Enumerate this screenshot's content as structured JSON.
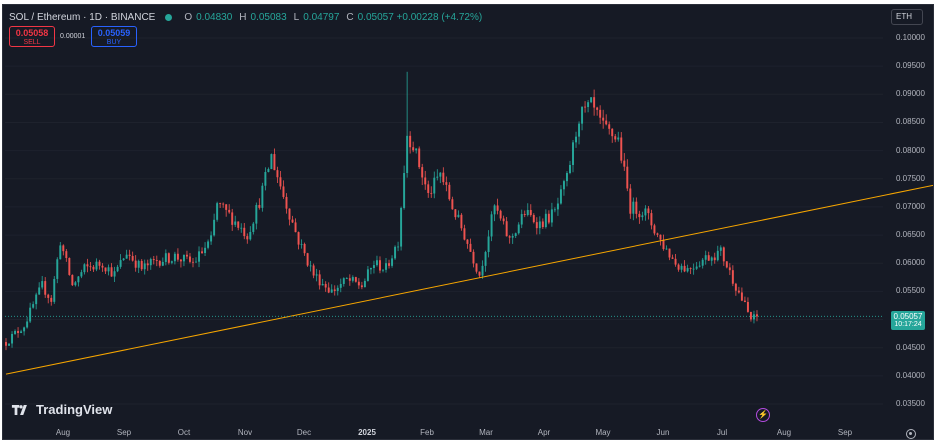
{
  "header": {
    "symbol": "SOL / Ethereum · 1D · BINANCE",
    "ohlc": [
      {
        "k": "O",
        "v": "0.04830"
      },
      {
        "k": "H",
        "v": "0.05083"
      },
      {
        "k": "L",
        "v": "0.04797"
      },
      {
        "k": "C",
        "v": "0.05057 +0.00228 (+4.72%)"
      }
    ],
    "status_color": "#26a69a"
  },
  "trade": {
    "sell_price": "0.05058",
    "sell_label": "SELL",
    "spread": "0.00001",
    "buy_price": "0.05059",
    "buy_label": "BUY"
  },
  "currency": "ETH",
  "last_price": {
    "price": "0.05057",
    "countdown": "10:17:24"
  },
  "brand": "TradingView",
  "icons": {
    "brand_logo": "tradingview-logo-icon",
    "flash": "lightning-icon",
    "settings": "gear-icon"
  },
  "colors": {
    "up": "#26a69a",
    "down": "#ef5350",
    "trendline": "#f7a600",
    "background": "#161a25"
  },
  "chart_data": {
    "type": "candlestick",
    "y_ticks": [
      "0.10000",
      "0.09500",
      "0.09000",
      "0.08500",
      "0.08000",
      "0.07500",
      "0.07000",
      "0.06500",
      "0.06000",
      "0.05500",
      "0.05000",
      "0.04500",
      "0.04000",
      "0.03500"
    ],
    "x_ticks": [
      "Aug",
      "Sep",
      "Oct",
      "Nov",
      "Dec",
      "2025",
      "Feb",
      "Mar",
      "Apr",
      "May",
      "Jun",
      "Jul",
      "Aug",
      "Sep"
    ],
    "ylim": [
      0.033,
      0.1023
    ],
    "close_path": [
      [
        0,
        0.046
      ],
      [
        6,
        0.049
      ],
      [
        12,
        0.056
      ],
      [
        15,
        0.0535
      ],
      [
        18,
        0.064
      ],
      [
        22,
        0.056
      ],
      [
        26,
        0.059
      ],
      [
        32,
        0.06
      ],
      [
        36,
        0.058
      ],
      [
        40,
        0.062
      ],
      [
        45,
        0.059
      ],
      [
        50,
        0.0605
      ],
      [
        56,
        0.0612
      ],
      [
        62,
        0.06
      ],
      [
        68,
        0.064
      ],
      [
        70,
        0.0705
      ],
      [
        75,
        0.068
      ],
      [
        80,
        0.065
      ],
      [
        84,
        0.071
      ],
      [
        88,
        0.079
      ],
      [
        92,
        0.072
      ],
      [
        97,
        0.064
      ],
      [
        102,
        0.058
      ],
      [
        108,
        0.055
      ],
      [
        113,
        0.057
      ],
      [
        118,
        0.056
      ],
      [
        122,
        0.06
      ],
      [
        126,
        0.059
      ],
      [
        130,
        0.064
      ],
      [
        133,
        0.083
      ],
      [
        135,
        0.081
      ],
      [
        140,
        0.072
      ],
      [
        144,
        0.076
      ],
      [
        148,
        0.07
      ],
      [
        152,
        0.065
      ],
      [
        157,
        0.058
      ],
      [
        162,
        0.07
      ],
      [
        167,
        0.064
      ],
      [
        172,
        0.069
      ],
      [
        177,
        0.067
      ],
      [
        182,
        0.069
      ],
      [
        186,
        0.075
      ],
      [
        190,
        0.086
      ],
      [
        194,
        0.088
      ],
      [
        198,
        0.084
      ],
      [
        203,
        0.082
      ],
      [
        207,
        0.07
      ],
      [
        212,
        0.069
      ],
      [
        217,
        0.064
      ],
      [
        222,
        0.06
      ],
      [
        226,
        0.059
      ],
      [
        232,
        0.061
      ],
      [
        237,
        0.062
      ],
      [
        242,
        0.056
      ],
      [
        247,
        0.05
      ],
      [
        250,
        0.0506
      ]
    ],
    "candle_count": 250,
    "trendline": [
      [
        0,
        0.0403
      ],
      [
        242,
        0.0667
      ]
    ],
    "last_price_line": 0.05057
  }
}
